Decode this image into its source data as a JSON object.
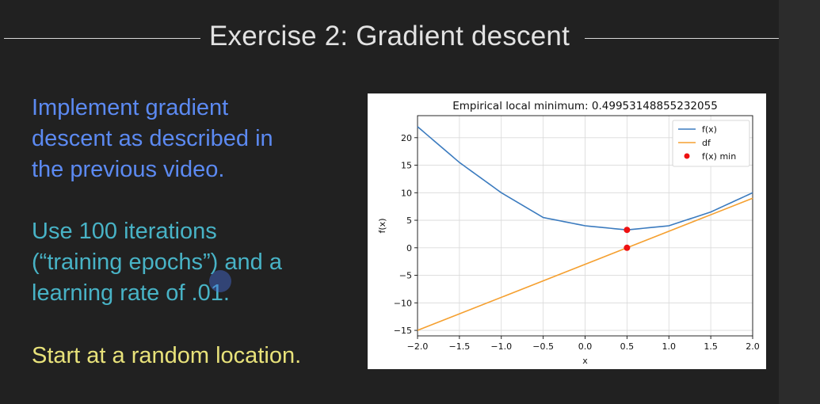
{
  "slide": {
    "title": "Exercise 2: Gradient descent",
    "paragraph1": [
      "Implement gradient",
      "descent as described in",
      "the previous video."
    ],
    "paragraph2": [
      "Use 100 iterations",
      "(“training epochs”) and a",
      "learning rate of .01."
    ],
    "paragraph3": [
      "Start at a random location."
    ]
  },
  "colors": {
    "background": "#212121",
    "paragraph1": "#5c8af2",
    "paragraph2": "#48b3c6",
    "paragraph3": "#e8e27a",
    "fx_line": "#3b7bbf",
    "df_line": "#f5a030",
    "marker": "#ee1111"
  },
  "chart_data": {
    "type": "line",
    "title": "Empirical local minimum: 0.49953148855232055",
    "xlabel": "x",
    "ylabel": "f(x)",
    "xlim": [
      -2.0,
      2.0
    ],
    "ylim": [
      -16,
      24
    ],
    "xticks": [
      -2.0,
      -1.5,
      -1.0,
      -0.5,
      0.0,
      0.5,
      1.0,
      1.5,
      2.0
    ],
    "xtick_labels": [
      "−2.0",
      "−1.5",
      "−1.0",
      "−0.5",
      "0.0",
      "0.5",
      "1.0",
      "1.5",
      "2.0"
    ],
    "yticks": [
      -15,
      -10,
      -5,
      0,
      5,
      10,
      15,
      20
    ],
    "ytick_labels": [
      "−15",
      "−10",
      "−5",
      "0",
      "5",
      "10",
      "15",
      "20"
    ],
    "grid": true,
    "legend_position": "top-right",
    "series": [
      {
        "name": "f(x)",
        "kind": "line",
        "color": "#3b7bbf",
        "x": [
          -2.0,
          -1.5,
          -1.0,
          -0.5,
          0.0,
          0.5,
          1.0,
          1.5,
          2.0
        ],
        "y": [
          22,
          15.5,
          10,
          5.5,
          4,
          3.25,
          4,
          6.5,
          10
        ]
      },
      {
        "name": "df",
        "kind": "line",
        "color": "#f5a030",
        "x": [
          -2.0,
          2.0
        ],
        "y": [
          -15,
          9
        ]
      },
      {
        "name": "f(x) min",
        "kind": "scatter",
        "color": "#ee1111",
        "x": [
          0.5,
          0.5
        ],
        "y": [
          3.25,
          0
        ]
      }
    ]
  }
}
